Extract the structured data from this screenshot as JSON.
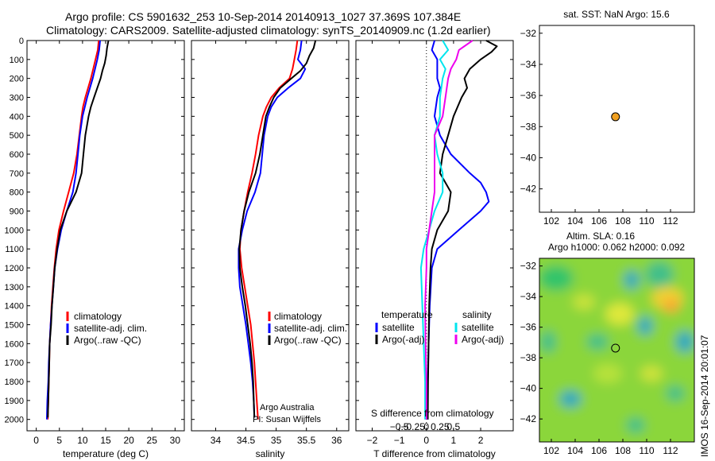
{
  "header": {
    "line1": "Argo profile: CS 5901632_253 10-Sep-2014 20140913_1027 37.369S 107.384E",
    "line2": "Climatology: CARS2009. Satellite-adjusted climatology: synTS_20140909.nc (1.2d earlier)"
  },
  "colors": {
    "climatology": "#ff0000",
    "satellite": "#0000ff",
    "argo": "#000000",
    "sat_salinity": "#00e5ee",
    "argo_salinity": "#ee00ee",
    "float_marker": "#f0a020"
  },
  "sidebar_text": "IMOS 16-Sep-2014 20:01:07",
  "depth_ticks": [
    0,
    100,
    200,
    300,
    400,
    500,
    600,
    700,
    800,
    900,
    1000,
    1100,
    1200,
    1300,
    1400,
    1500,
    1600,
    1700,
    1800,
    1900,
    2000
  ],
  "chart_data": [
    {
      "id": "temperature",
      "type": "line",
      "xlabel": "temperature (deg C)",
      "xlim": [
        -2,
        32
      ],
      "ylim": [
        2060,
        0
      ],
      "xticks": [
        0,
        5,
        10,
        15,
        20,
        25,
        30
      ],
      "legend": [
        "climatology",
        "satellite-adj. clim.",
        "Argo(..raw -QC)"
      ],
      "legend_placement": "lower-middle",
      "series": [
        {
          "name": "climatology",
          "color": "#ff0000",
          "depth": [
            0,
            50,
            100,
            150,
            200,
            250,
            300,
            350,
            400,
            500,
            600,
            700,
            800,
            900,
            1000,
            1100,
            1200,
            1300,
            1400,
            1500,
            1600,
            1700,
            1800,
            1900,
            2000
          ],
          "values": [
            13.5,
            13.3,
            12.8,
            12.3,
            11.8,
            11.2,
            10.6,
            10.1,
            9.8,
            9.3,
            8.8,
            8.1,
            7.0,
            5.9,
            4.9,
            4.3,
            3.9,
            3.6,
            3.3,
            3.1,
            2.9,
            2.8,
            2.7,
            2.6,
            2.5
          ]
        },
        {
          "name": "satellite-adj. clim.",
          "color": "#0000ff",
          "depth": [
            0,
            50,
            100,
            150,
            200,
            250,
            300,
            350,
            400,
            500,
            600,
            700,
            800,
            900,
            1000,
            1100,
            1200,
            1300,
            1400,
            1500,
            1600,
            1700,
            1800,
            1900,
            2000
          ],
          "values": [
            13.8,
            13.6,
            13.2,
            12.7,
            12.2,
            11.6,
            11.0,
            10.5,
            10.0,
            9.4,
            9.0,
            8.6,
            7.9,
            6.6,
            5.4,
            4.6,
            4.0,
            3.7,
            3.4,
            3.1,
            2.9,
            2.7,
            2.6,
            2.4,
            2.3
          ]
        },
        {
          "name": "Argo(..raw -QC)",
          "color": "#000000",
          "depth": [
            0,
            40,
            80,
            120,
            160,
            200,
            250,
            300,
            350,
            400,
            500,
            600,
            700,
            800,
            900,
            1000,
            1100,
            1200,
            1300,
            1400,
            1500,
            1600,
            1700,
            1800,
            1900,
            1990
          ],
          "values": [
            15.6,
            15.3,
            15.1,
            14.8,
            14.3,
            13.9,
            13.2,
            12.5,
            11.8,
            11.3,
            10.6,
            10.2,
            9.8,
            8.6,
            6.6,
            5.2,
            4.5,
            4.0,
            3.7,
            3.4,
            3.2,
            2.9,
            2.8,
            2.7,
            2.6,
            2.5
          ]
        }
      ]
    },
    {
      "id": "salinity",
      "type": "line",
      "xlabel": "salinity",
      "xlim": [
        33.6,
        36.2
      ],
      "ylim": [
        2060,
        0
      ],
      "xticks": [
        34,
        34.5,
        35,
        35.5,
        36
      ],
      "xtick_labels": [
        "34",
        "34.5",
        "35",
        "35.5",
        "36"
      ],
      "legend": [
        "climatology",
        "satellite-adj. clim.",
        "Argo(..raw -QC)"
      ],
      "legend_placement": "lower-middle",
      "annotation": [
        "Argo Australia",
        "PI: Susan Wijffels"
      ],
      "series": [
        {
          "name": "climatology",
          "color": "#ff0000",
          "depth": [
            0,
            50,
            100,
            150,
            200,
            250,
            300,
            350,
            400,
            500,
            600,
            700,
            800,
            900,
            1000,
            1100,
            1200,
            1300,
            1400,
            1500,
            1600,
            1700,
            1800,
            1900,
            2000
          ],
          "values": [
            35.35,
            35.33,
            35.3,
            35.27,
            35.22,
            35.05,
            34.92,
            34.84,
            34.78,
            34.71,
            34.66,
            34.6,
            34.53,
            34.47,
            34.42,
            34.4,
            34.43,
            34.48,
            34.53,
            34.58,
            34.61,
            34.64,
            34.66,
            34.68,
            34.7
          ]
        },
        {
          "name": "satellite-adj. clim.",
          "color": "#0000ff",
          "depth": [
            0,
            50,
            100,
            150,
            200,
            250,
            300,
            350,
            400,
            500,
            600,
            700,
            800,
            900,
            1000,
            1100,
            1200,
            1300,
            1400,
            1500,
            1600,
            1700,
            1800,
            1900,
            1990
          ],
          "values": [
            35.42,
            35.4,
            35.36,
            35.48,
            35.4,
            35.2,
            35.02,
            34.92,
            34.86,
            34.8,
            34.77,
            34.74,
            34.65,
            34.52,
            34.44,
            34.38,
            34.38,
            34.4,
            34.45,
            34.5,
            34.54,
            34.58,
            34.61,
            34.63,
            34.64
          ]
        },
        {
          "name": "Argo(..raw -QC)",
          "color": "#000000",
          "depth": [
            0,
            40,
            80,
            120,
            160,
            200,
            250,
            300,
            350,
            400,
            500,
            600,
            700,
            800,
            900,
            1000,
            1100,
            1200,
            1300,
            1400,
            1500,
            1600,
            1700,
            1800,
            1900,
            1990
          ],
          "values": [
            35.65,
            35.62,
            35.55,
            35.5,
            35.4,
            35.25,
            35.07,
            34.96,
            34.89,
            34.83,
            34.78,
            34.73,
            34.66,
            34.55,
            34.47,
            34.42,
            34.39,
            34.4,
            34.44,
            34.49,
            34.53,
            34.57,
            34.6,
            34.62,
            34.63,
            34.64
          ]
        }
      ]
    },
    {
      "id": "difference",
      "type": "line",
      "xlabel": "T difference from climatology",
      "xlabel_top": "S difference from climatology",
      "xlim": [
        -2.6,
        3.2
      ],
      "ylim": [
        2060,
        0
      ],
      "xticks": [
        -2,
        -1,
        0,
        1,
        2
      ],
      "xtick_labels": [
        "−2",
        "−1",
        "0",
        "1",
        "2"
      ],
      "s_ticks_labels": [
        "−0.5",
        "−0.25",
        "0",
        "0.25",
        "0.5"
      ],
      "legend_temperature_title": "temperature",
      "legend_temperature": [
        "satellite",
        "Argo(-adj)"
      ],
      "legend_salinity_title": "salinity",
      "legend_salinity": [
        "satellite",
        "Argo(-adj)"
      ],
      "series": [
        {
          "name": "temperature satellite",
          "color": "#0000ff",
          "depth": [
            0,
            50,
            100,
            150,
            200,
            250,
            300,
            400,
            500,
            600,
            700,
            750,
            800,
            850,
            900,
            1000,
            1100,
            1200,
            1400,
            1600,
            1800,
            2000
          ],
          "values": [
            0.3,
            0.2,
            0.4,
            0.4,
            0.4,
            0.5,
            0.4,
            0.3,
            0.5,
            0.9,
            1.6,
            2.0,
            2.2,
            2.3,
            2.0,
            1.2,
            0.4,
            0.2,
            0.12,
            0.08,
            0.05,
            0.05
          ]
        },
        {
          "name": "temperature Argo(-adj)",
          "color": "#000000",
          "depth": [
            0,
            30,
            60,
            100,
            150,
            200,
            250,
            300,
            400,
            500,
            600,
            700,
            800,
            900,
            1000,
            1100,
            1200,
            1400,
            1600,
            1800,
            2000
          ],
          "values": [
            2.2,
            2.6,
            2.4,
            2.0,
            1.6,
            1.4,
            1.5,
            1.3,
            1.0,
            0.8,
            0.6,
            0.5,
            0.9,
            0.8,
            0.4,
            0.2,
            0.15,
            0.1,
            0.08,
            0.06,
            0.05
          ]
        },
        {
          "name": "salinity satellite",
          "color": "#00e5ee",
          "depth": [
            0,
            50,
            100,
            150,
            200,
            300,
            400,
            500,
            600,
            700,
            800,
            900,
            1000,
            1100,
            1200,
            1400,
            1600,
            1800,
            2000
          ],
          "values": [
            0.6,
            0.8,
            0.5,
            0.7,
            0.6,
            0.5,
            0.5,
            0.3,
            0.4,
            0.6,
            0.6,
            0.3,
            0.1,
            -0.1,
            -0.2,
            -0.15,
            -0.1,
            -0.05,
            -0.05
          ]
        },
        {
          "name": "salinity Argo(-adj)",
          "color": "#ee00ee",
          "depth": [
            0,
            50,
            100,
            150,
            200,
            300,
            400,
            500,
            600,
            700,
            800,
            900,
            1000,
            1100,
            1200,
            1400,
            1600,
            1800,
            2000
          ],
          "values": [
            1.7,
            1.2,
            1.1,
            0.9,
            0.8,
            0.7,
            0.6,
            0.3,
            0.3,
            0.3,
            0.3,
            0.2,
            0.1,
            0.0,
            0.0,
            -0.05,
            -0.03,
            0.0,
            0.0
          ]
        }
      ]
    },
    {
      "id": "position-map",
      "type": "scatter",
      "title": "sat. SST: NaN Argo: 15.6",
      "xlim": [
        101,
        114
      ],
      "ylim": [
        -43.5,
        -31.5
      ],
      "xticks": [
        102,
        104,
        106,
        108,
        110,
        112
      ],
      "yticks": [
        -32,
        -34,
        -36,
        -38,
        -40,
        -42
      ],
      "points": [
        {
          "x": 107.384,
          "y": -37.369
        }
      ]
    },
    {
      "id": "sla-map",
      "type": "heatmap",
      "title_line1": "Altim. SLA: 0.16",
      "title_line2": "Argo h1000: 0.062 h2000: 0.092",
      "xlim": [
        101,
        114
      ],
      "ylim": [
        -43.5,
        -31.5
      ],
      "xticks": [
        102,
        104,
        106,
        108,
        110,
        112
      ],
      "yticks": [
        -32,
        -34,
        -36,
        -38,
        -40,
        -42
      ],
      "points": [
        {
          "x": 107.384,
          "y": -37.369
        }
      ]
    }
  ]
}
